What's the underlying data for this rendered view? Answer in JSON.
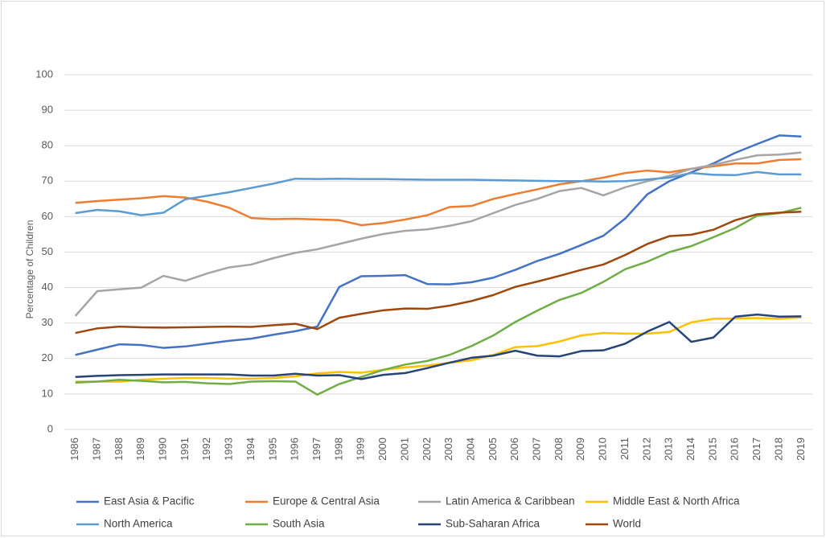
{
  "chart_data": {
    "type": "line",
    "y_label": "Percentage of Children",
    "x": [
      1986,
      1987,
      1988,
      1989,
      1990,
      1991,
      1992,
      1993,
      1994,
      1995,
      1996,
      1997,
      1998,
      1999,
      2000,
      2001,
      2002,
      2003,
      2004,
      2005,
      2006,
      2007,
      2008,
      2009,
      2010,
      2011,
      2012,
      2013,
      2014,
      2015,
      2016,
      2017,
      2018,
      2019
    ],
    "ylim": [
      0,
      100
    ],
    "yticks": [
      0,
      10,
      20,
      30,
      40,
      50,
      60,
      70,
      80,
      90,
      100
    ],
    "grid": true,
    "series": [
      {
        "name": "East Asia & Pacific",
        "color": "#4472c4",
        "values": [
          21,
          22.5,
          24,
          23.8,
          23,
          23.4,
          24.2,
          25,
          25.6,
          26.7,
          27.7,
          29,
          40.2,
          43.2,
          43.3,
          43.5,
          41,
          40.9,
          41.5,
          42.8,
          45,
          47.5,
          49.5,
          52,
          54.6,
          59.5,
          66.3,
          70,
          72.5,
          75,
          78,
          80.5,
          82.9,
          82.6
        ]
      },
      {
        "name": "Europe & Central Asia",
        "color": "#ed7d31",
        "values": [
          63.9,
          64.4,
          64.8,
          65.2,
          65.8,
          65.4,
          64.2,
          62.5,
          59.6,
          59.3,
          59.4,
          59.2,
          59,
          57.6,
          58.2,
          59.2,
          60.4,
          62.7,
          63,
          65,
          66.4,
          67.7,
          69.1,
          70,
          71,
          72.3,
          73,
          72.5,
          73.5,
          74.2,
          75,
          75,
          76,
          76.2
        ]
      },
      {
        "name": "Latin America & Caribbean",
        "color": "#a5a5a5",
        "values": [
          32,
          39,
          39.5,
          40,
          43.3,
          41.9,
          44,
          45.7,
          46.5,
          48.3,
          49.8,
          50.8,
          52.3,
          53.8,
          55.1,
          56,
          56.4,
          57.4,
          58.7,
          61,
          63.3,
          65,
          67.2,
          68.1,
          66,
          68.3,
          70,
          71.5,
          73.5,
          74.6,
          76,
          77.3,
          77.5,
          78.1
        ]
      },
      {
        "name": "Middle East & North Africa",
        "color": "#ffc000",
        "values": [
          13.5,
          13.5,
          13.5,
          14,
          14.3,
          14.5,
          14.5,
          14.3,
          14.3,
          14.5,
          15,
          15.8,
          16.2,
          16,
          16.8,
          17.5,
          18,
          18.8,
          19.5,
          21,
          23.2,
          23.5,
          24.8,
          26.5,
          27.2,
          27,
          27,
          27.5,
          30.2,
          31.2,
          31.3,
          31.4,
          31.2,
          31.6
        ]
      },
      {
        "name": "North America",
        "color": "#5b9bd5",
        "values": [
          61,
          61.9,
          61.5,
          60.4,
          61.1,
          64.9,
          65.9,
          66.9,
          68.1,
          69.3,
          70.7,
          70.6,
          70.7,
          70.6,
          70.6,
          70.5,
          70.4,
          70.4,
          70.4,
          70.3,
          70.2,
          70.1,
          70,
          70,
          69.9,
          70,
          70.5,
          71,
          72.3,
          71.8,
          71.7,
          72.6,
          71.9,
          71.9
        ]
      },
      {
        "name": "South Asia",
        "color": "#70ad47",
        "values": [
          13.2,
          13.5,
          14,
          13.7,
          13.3,
          13.4,
          13,
          12.8,
          13.5,
          13.6,
          13.5,
          9.8,
          12.8,
          14.8,
          16.8,
          18.3,
          19.3,
          21,
          23.5,
          26.5,
          30.3,
          33.5,
          36.5,
          38.5,
          41.6,
          45.2,
          47.3,
          50,
          51.7,
          54.2,
          56.8,
          60.3,
          61,
          62.5
        ]
      },
      {
        "name": "Sub-Saharan Africa",
        "color": "#264478",
        "values": [
          14.8,
          15.1,
          15.3,
          15.4,
          15.5,
          15.5,
          15.5,
          15.5,
          15.2,
          15.2,
          15.7,
          15.2,
          15.3,
          14.2,
          15.4,
          15.9,
          17.3,
          18.8,
          20.2,
          20.8,
          22.2,
          20.8,
          20.6,
          22.1,
          22.3,
          24.2,
          27.6,
          30.3,
          24.7,
          25.9,
          31.8,
          32.4,
          31.8,
          31.9
        ]
      },
      {
        "name": "World",
        "color": "#9e480e",
        "values": [
          27.2,
          28.5,
          29,
          28.8,
          28.7,
          28.8,
          28.9,
          29,
          28.9,
          29.4,
          29.8,
          28.3,
          31.5,
          32.6,
          33.6,
          34.1,
          34,
          34.9,
          36.2,
          37.9,
          40.2,
          41.7,
          43.3,
          45,
          46.5,
          49.2,
          52.3,
          54.5,
          54.9,
          56.3,
          59,
          60.7,
          61.1,
          61.4
        ]
      }
    ]
  }
}
